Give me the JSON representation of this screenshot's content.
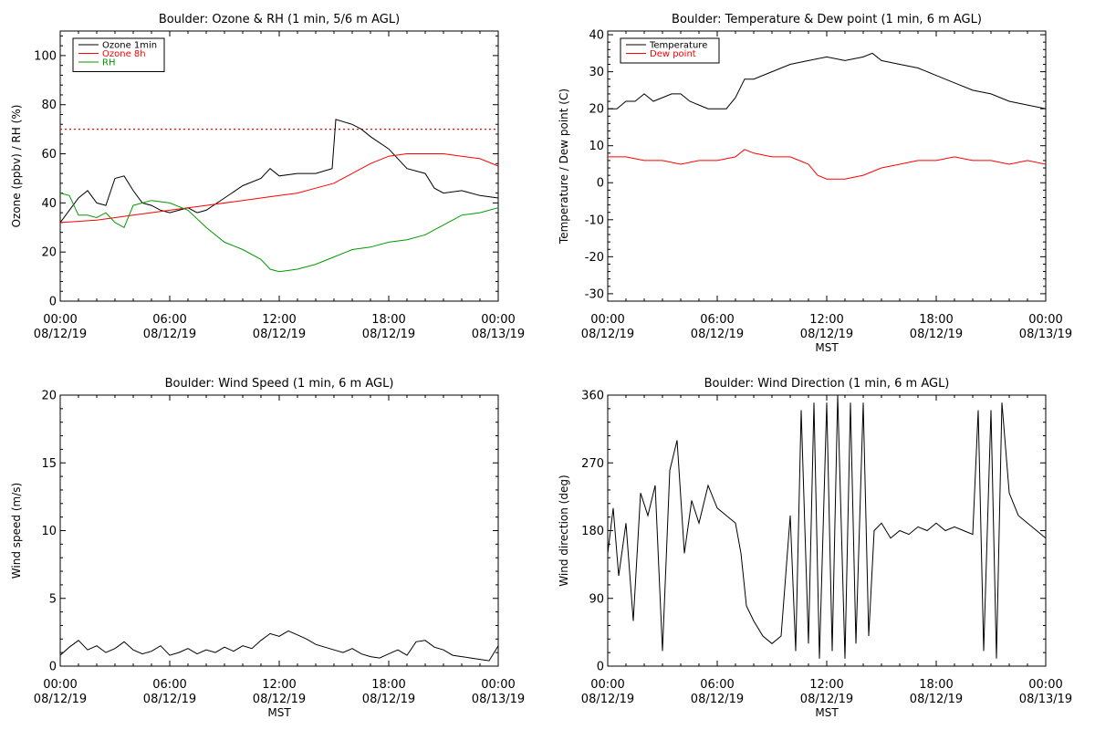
{
  "chart_data": [
    {
      "type": "line",
      "title": "Boulder: Ozone & RH (1 min, 5/6 m AGL)",
      "xlabel": "",
      "ylabel": "Ozone (ppbv) / RH (%)",
      "xlim": [
        0,
        24
      ],
      "ylim": [
        0,
        110
      ],
      "yticks": [
        0,
        20,
        40,
        60,
        80,
        100
      ],
      "x_tick_labels": [
        {
          "time": "00:00",
          "date": "08/12/19"
        },
        {
          "time": "06:00",
          "date": "08/12/19"
        },
        {
          "time": "12:00",
          "date": "08/12/19"
        },
        {
          "time": "18:00",
          "date": "08/12/19"
        },
        {
          "time": "00:00",
          "date": "08/13/19"
        }
      ],
      "legend": "top-left",
      "reference_line": {
        "y": 70,
        "style": "dotted",
        "color": "#ff0000"
      },
      "series": [
        {
          "name": "Ozone 1min",
          "color": "#000000",
          "x": [
            0,
            0.5,
            1,
            1.5,
            2,
            2.5,
            3,
            3.5,
            4,
            4.5,
            5,
            5.5,
            6,
            6.5,
            7,
            7.5,
            8,
            9,
            10,
            11,
            11.5,
            12,
            13,
            14,
            14.9,
            15.1,
            16,
            16.5,
            17,
            18,
            19,
            20,
            20.5,
            21,
            22,
            23,
            24
          ],
          "y": [
            32,
            37,
            42,
            45,
            40,
            39,
            50,
            51,
            45,
            40,
            39,
            37,
            36,
            37,
            38,
            36,
            37,
            42,
            47,
            50,
            54,
            51,
            52,
            52,
            54,
            74,
            72,
            70,
            67,
            62,
            54,
            52,
            46,
            44,
            45,
            43,
            42
          ]
        },
        {
          "name": "Ozone 8h",
          "color": "#ff0000",
          "x": [
            0,
            2,
            4,
            6,
            8,
            10,
            12,
            13,
            14,
            15,
            16,
            17,
            18,
            19,
            20,
            21,
            22,
            23,
            24
          ],
          "y": [
            32,
            33,
            35,
            37,
            39,
            41,
            43,
            44,
            46,
            48,
            52,
            56,
            59,
            60,
            60,
            60,
            59,
            58,
            55
          ]
        },
        {
          "name": "RH",
          "color": "#009900",
          "x": [
            0,
            0.5,
            1,
            1.5,
            2,
            2.5,
            3,
            3.5,
            4,
            5,
            6,
            7,
            8,
            9,
            10,
            11,
            11.5,
            12,
            13,
            14,
            15,
            16,
            17,
            18,
            19,
            20,
            21,
            22,
            23,
            24
          ],
          "y": [
            44,
            43,
            35,
            35,
            34,
            36,
            32,
            30,
            39,
            41,
            40,
            37,
            30,
            24,
            21,
            17,
            13,
            12,
            13,
            15,
            18,
            21,
            22,
            24,
            25,
            27,
            31,
            35,
            36,
            38
          ]
        }
      ]
    },
    {
      "type": "line",
      "title": "Boulder: Temperature & Dew point (1 min, 6 m AGL)",
      "xlabel": "MST",
      "ylabel": "Temperature / Dew point (C)",
      "xlim": [
        0,
        24
      ],
      "ylim": [
        -32,
        41
      ],
      "yticks": [
        -30,
        -20,
        -10,
        0,
        10,
        20,
        30,
        40
      ],
      "x_tick_labels": [
        {
          "time": "00:00",
          "date": "08/12/19"
        },
        {
          "time": "06:00",
          "date": "08/12/19"
        },
        {
          "time": "12:00",
          "date": "08/12/19"
        },
        {
          "time": "18:00",
          "date": "08/12/19"
        },
        {
          "time": "00:00",
          "date": "08/13/19"
        }
      ],
      "legend": "top-left",
      "series": [
        {
          "name": "Temperature",
          "color": "#000000",
          "x": [
            0,
            0.5,
            1,
            1.5,
            2,
            2.5,
            3,
            3.5,
            4,
            4.5,
            5,
            5.5,
            6,
            6.5,
            7,
            7.5,
            8,
            9,
            10,
            11,
            12,
            13,
            14,
            14.5,
            15,
            16,
            17,
            18,
            19,
            20,
            21,
            22,
            23,
            24
          ],
          "y": [
            20,
            20,
            22,
            22,
            24,
            22,
            23,
            24,
            24,
            22,
            21,
            20,
            20,
            20,
            23,
            28,
            28,
            30,
            32,
            33,
            34,
            33,
            34,
            35,
            33,
            32,
            31,
            29,
            27,
            25,
            24,
            22,
            21,
            20
          ]
        },
        {
          "name": "Dew point",
          "color": "#ff0000",
          "x": [
            0,
            1,
            2,
            3,
            4,
            5,
            6,
            7,
            7.5,
            8,
            9,
            10,
            10.5,
            11,
            11.5,
            12,
            13,
            14,
            15,
            16,
            17,
            18,
            19,
            20,
            21,
            22,
            23,
            24
          ],
          "y": [
            7,
            7,
            6,
            6,
            5,
            6,
            6,
            7,
            9,
            8,
            7,
            7,
            6,
            5,
            2,
            1,
            1,
            2,
            4,
            5,
            6,
            6,
            7,
            6,
            6,
            5,
            6,
            5
          ]
        }
      ]
    },
    {
      "type": "line",
      "title": "Boulder: Wind Speed (1 min, 6 m AGL)",
      "xlabel": "MST",
      "ylabel": "Wind speed (m/s)",
      "xlim": [
        0,
        24
      ],
      "ylim": [
        0,
        20
      ],
      "yticks": [
        0,
        5,
        10,
        15,
        20
      ],
      "x_tick_labels": [
        {
          "time": "00:00",
          "date": "08/12/19"
        },
        {
          "time": "06:00",
          "date": "08/12/19"
        },
        {
          "time": "12:00",
          "date": "08/12/19"
        },
        {
          "time": "18:00",
          "date": "08/12/19"
        },
        {
          "time": "00:00",
          "date": "08/13/19"
        }
      ],
      "series": [
        {
          "color": "#000000",
          "x": [
            0,
            0.5,
            1,
            1.5,
            2,
            2.5,
            3,
            3.5,
            4,
            4.5,
            5,
            5.5,
            6,
            6.5,
            7,
            7.5,
            8,
            8.5,
            9,
            9.5,
            10,
            10.5,
            11,
            11.5,
            12,
            12.5,
            13,
            13.5,
            14,
            14.5,
            15,
            15.5,
            16,
            16.5,
            17,
            17.5,
            18,
            18.5,
            19,
            19.5,
            20,
            20.5,
            21,
            21.5,
            22,
            22.5,
            23,
            23.5,
            24
          ],
          "y": [
            0.8,
            1.4,
            1.9,
            1.2,
            1.5,
            1.0,
            1.3,
            1.8,
            1.2,
            0.9,
            1.1,
            1.5,
            0.8,
            1.0,
            1.3,
            0.9,
            1.2,
            1.0,
            1.4,
            1.1,
            1.5,
            1.3,
            1.9,
            2.4,
            2.2,
            2.6,
            2.3,
            2.0,
            1.6,
            1.4,
            1.2,
            1.0,
            1.3,
            0.9,
            0.7,
            0.6,
            0.9,
            1.2,
            0.8,
            1.8,
            1.9,
            1.4,
            1.2,
            0.8,
            0.7,
            0.6,
            0.5,
            0.4,
            1.5
          ]
        }
      ]
    },
    {
      "type": "line",
      "title": "Boulder: Wind Direction (1 min, 6 m AGL)",
      "xlabel": "MST",
      "ylabel": "Wind direction (deg)",
      "xlim": [
        0,
        24
      ],
      "ylim": [
        0,
        360
      ],
      "yticks": [
        0,
        90,
        180,
        270,
        360
      ],
      "x_tick_labels": [
        {
          "time": "00:00",
          "date": "08/12/19"
        },
        {
          "time": "06:00",
          "date": "08/12/19"
        },
        {
          "time": "12:00",
          "date": "08/12/19"
        },
        {
          "time": "18:00",
          "date": "08/12/19"
        },
        {
          "time": "00:00",
          "date": "08/13/19"
        }
      ],
      "series": [
        {
          "color": "#000000",
          "x": [
            0,
            0.3,
            0.6,
            1,
            1.4,
            1.8,
            2.2,
            2.6,
            3,
            3.4,
            3.8,
            4.2,
            4.6,
            5,
            5.5,
            6,
            6.5,
            7,
            7.3,
            7.6,
            8,
            8.5,
            9,
            9.5,
            10,
            10.3,
            10.6,
            11,
            11.3,
            11.6,
            12,
            12.3,
            12.6,
            13,
            13.3,
            13.6,
            14,
            14.3,
            14.6,
            15,
            15.5,
            16,
            16.5,
            17,
            17.5,
            18,
            18.5,
            19,
            19.5,
            20,
            20.3,
            20.6,
            21,
            21.3,
            21.6,
            22,
            22.5,
            23,
            23.5,
            24
          ],
          "y": [
            150,
            210,
            120,
            190,
            60,
            230,
            200,
            240,
            20,
            260,
            300,
            150,
            220,
            190,
            240,
            210,
            200,
            190,
            150,
            80,
            60,
            40,
            30,
            40,
            200,
            20,
            340,
            30,
            350,
            10,
            350,
            20,
            360,
            10,
            350,
            30,
            350,
            40,
            180,
            190,
            170,
            180,
            175,
            185,
            180,
            190,
            180,
            185,
            180,
            175,
            340,
            20,
            340,
            10,
            350,
            230,
            200,
            190,
            180,
            170
          ]
        }
      ]
    }
  ]
}
